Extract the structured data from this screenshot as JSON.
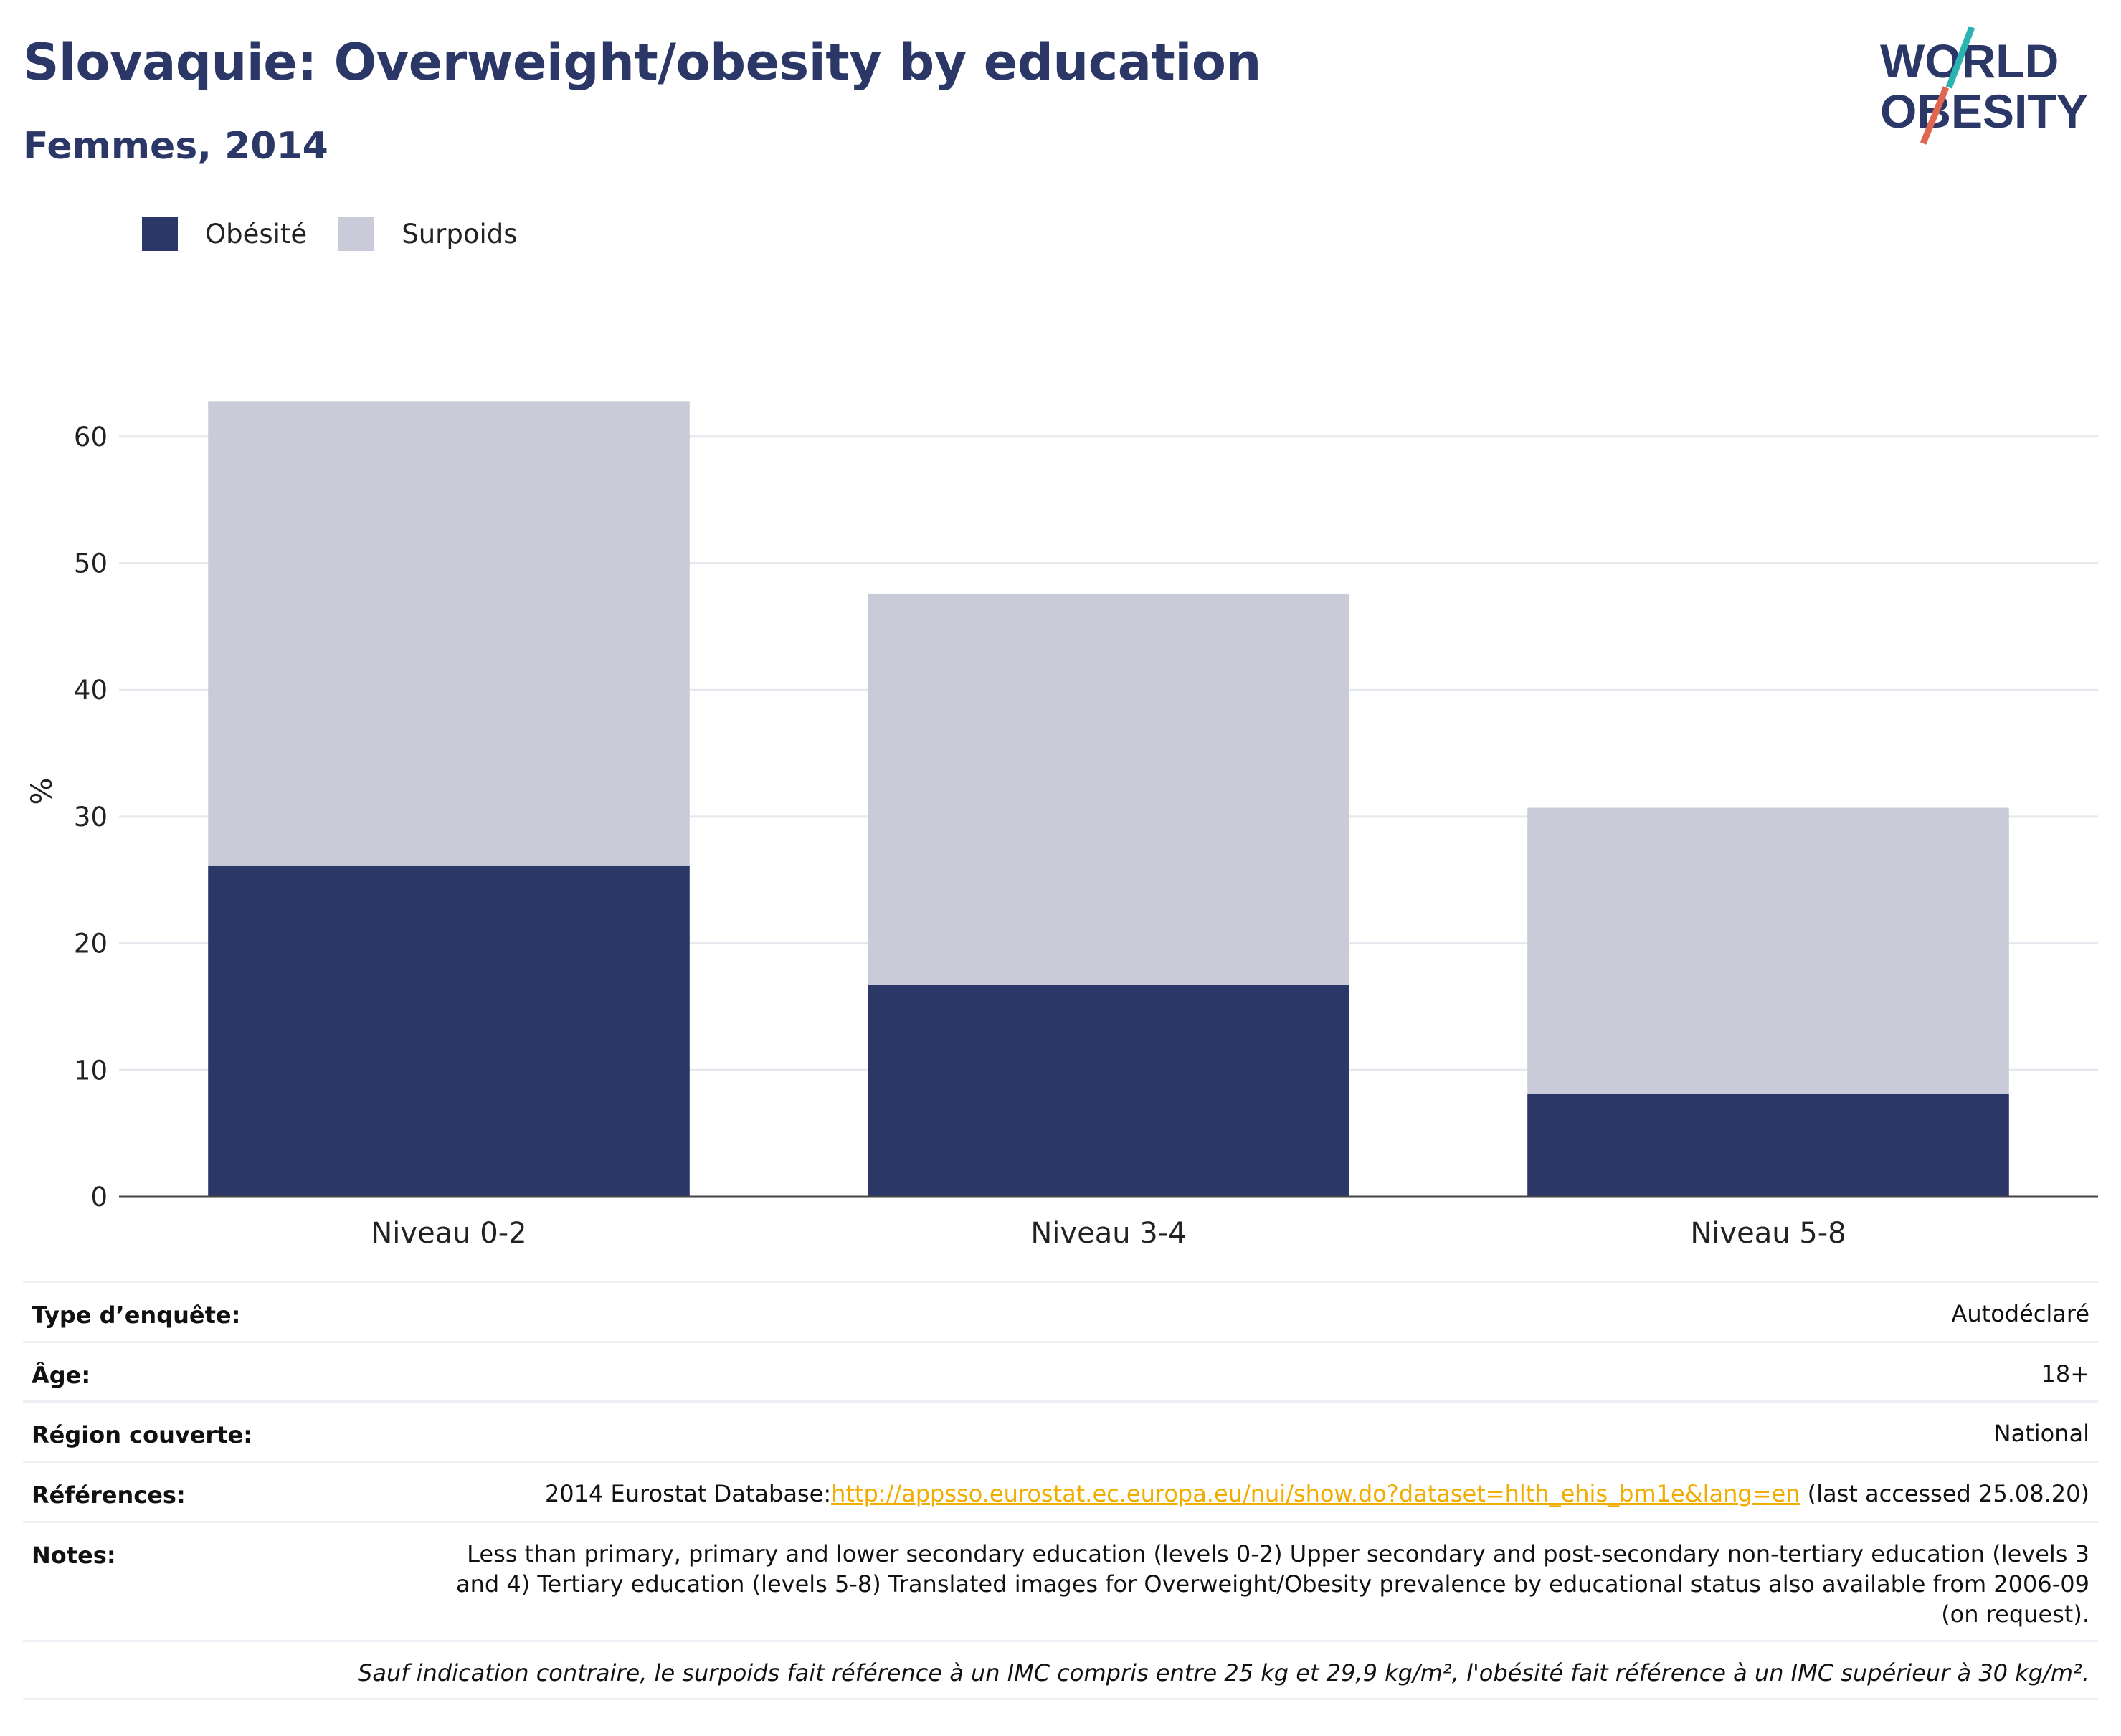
{
  "header": {
    "title": "Slovaquie: Overweight/obesity by education",
    "subtitle": "Femmes, 2014"
  },
  "logo": {
    "line1": "WORLD",
    "line2": "OBESITY"
  },
  "colors": {
    "obesity": "#2b3766",
    "overweight": "#c9ccd8",
    "title": "#2b3766",
    "link": "#f0ad00"
  },
  "chart_data": {
    "type": "bar",
    "stacked": true,
    "categories": [
      "Niveau 0-2",
      "Niveau 3-4",
      "Niveau 5-8"
    ],
    "series": [
      {
        "name": "Obésité",
        "values": [
          26.1,
          16.7,
          8.1
        ]
      },
      {
        "name": "Surpoids",
        "values": [
          36.7,
          30.9,
          22.6
        ]
      }
    ],
    "ylabel": "%",
    "ylim": [
      0,
      65
    ],
    "yticks": [
      0,
      10,
      20,
      30,
      40,
      50,
      60
    ],
    "grid": true,
    "legend_position": "top-left"
  },
  "info": {
    "survey_label": "Type d’enquête:",
    "survey_value": "Autodéclaré",
    "age_label": "Âge:",
    "age_value": "18+",
    "region_label": "Région couverte:",
    "region_value": "National",
    "refs_label": "Références:",
    "refs_prefix": "2014 Eurostat Database:",
    "refs_link": "http://appsso.eurostat.ec.europa.eu/nui/show.do?dataset=hlth_ehis_bm1e&lang=en",
    "refs_suffix": " (last accessed 25.08.20)",
    "notes_label": "Notes:",
    "notes_value": "Less than primary, primary and lower secondary education (levels 0-2) Upper secondary and post-secondary non-tertiary education (levels 3 and 4) Tertiary education (levels 5-8) Translated images for Overweight/Obesity prevalence by educational status also available from 2006-09 (on request).",
    "footnote": "Sauf indication contraire, le surpoids fait référence à un IMC compris entre 25 kg et 29,9 kg/m², l'obésité fait référence à un IMC supérieur à 30 kg/m²."
  }
}
